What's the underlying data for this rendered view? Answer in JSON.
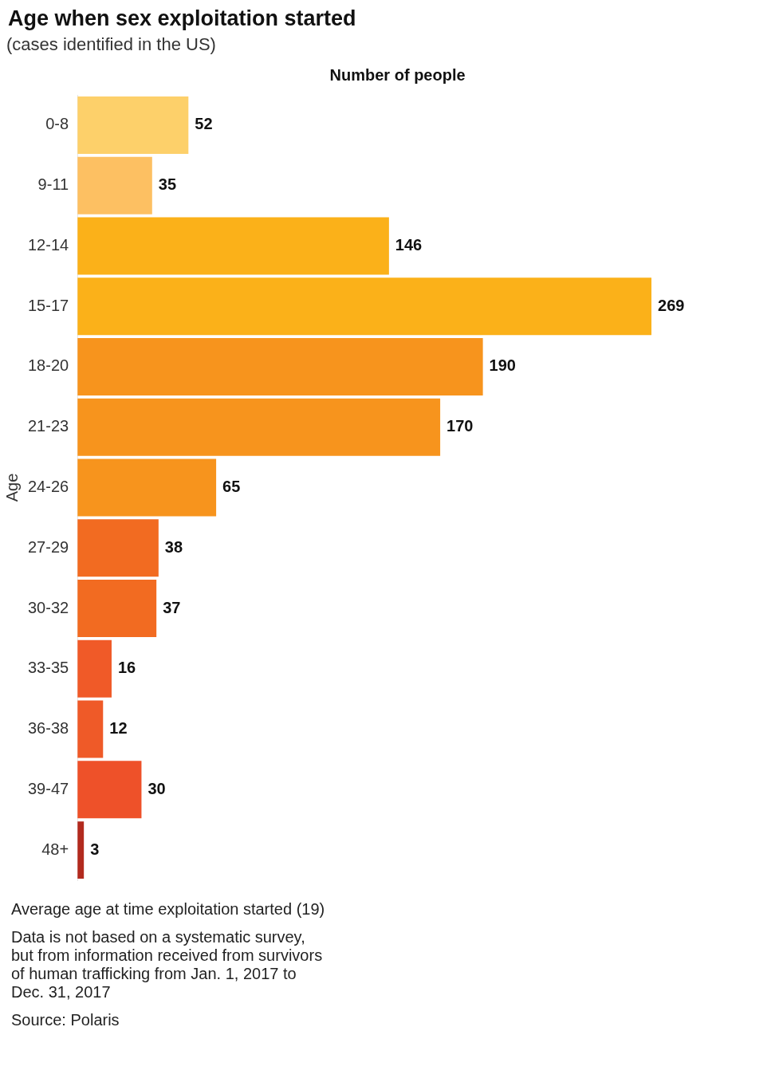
{
  "chart_data": {
    "type": "bar",
    "orientation": "horizontal",
    "title": "Age when sex exploitation started",
    "subtitle": "(cases identified in the US)",
    "xlabel": "Number of people",
    "ylabel": "Age",
    "categories": [
      "0-8",
      "9-11",
      "12-14",
      "15-17",
      "18-20",
      "21-23",
      "24-26",
      "27-29",
      "30-32",
      "33-35",
      "36-38",
      "39-47",
      "48+"
    ],
    "values": [
      52,
      35,
      146,
      269,
      190,
      170,
      65,
      38,
      37,
      16,
      12,
      30,
      3
    ],
    "colors": [
      "#fdd06a",
      "#fdc062",
      "#fbb119",
      "#fbb119",
      "#f7941d",
      "#f7941d",
      "#f7941d",
      "#f26b21",
      "#f26b21",
      "#f05a28",
      "#ef5a28",
      "#ee5129",
      "#b22a1e"
    ],
    "data_labels": true,
    "grid": false,
    "legend": false,
    "tick_labels": "y",
    "annotations": [
      "Average age at time exploitation started (19)",
      "Data is not based on a systematic survey, but from information received from survivors of human trafficking from Jan. 1, 2017 to Dec. 31, 2017",
      "Source: Polaris"
    ]
  }
}
